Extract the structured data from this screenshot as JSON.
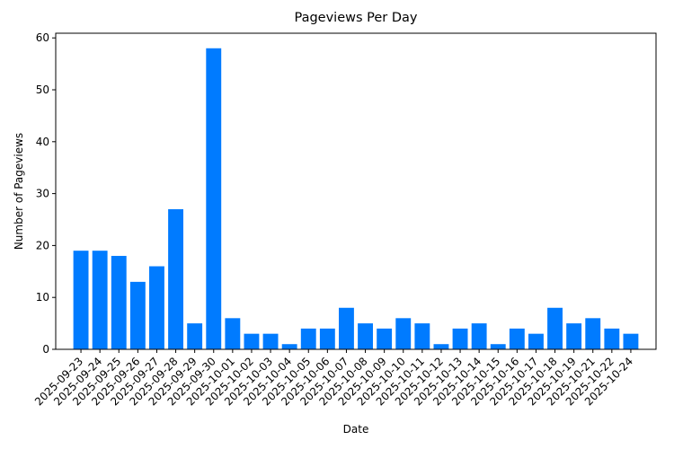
{
  "chart_data": {
    "type": "bar",
    "title": "Pageviews Per Day",
    "x_label": "Date",
    "y_label": "Number of Pageviews",
    "categories": [
      "2025-09-23",
      "2025-09-24",
      "2025-09-25",
      "2025-09-26",
      "2025-09-27",
      "2025-09-28",
      "2025-09-29",
      "2025-09-30",
      "2025-10-01",
      "2025-10-02",
      "2025-10-03",
      "2025-10-04",
      "2025-10-05",
      "2025-10-06",
      "2025-10-07",
      "2025-10-08",
      "2025-10-09",
      "2025-10-10",
      "2025-10-11",
      "2025-10-12",
      "2025-10-13",
      "2025-10-14",
      "2025-10-15",
      "2025-10-16",
      "2025-10-17",
      "2025-10-18",
      "2025-10-19",
      "2025-10-21",
      "2025-10-22",
      "2025-10-24"
    ],
    "values": [
      19,
      19,
      18,
      13,
      16,
      27,
      5,
      58,
      6,
      3,
      3,
      1,
      4,
      4,
      8,
      5,
      4,
      6,
      5,
      1,
      4,
      5,
      1,
      4,
      3,
      8,
      5,
      6,
      4,
      3
    ],
    "color": "#007bff",
    "ylim": [
      0,
      60.9
    ],
    "yticks": [
      0,
      10,
      20,
      30,
      40,
      50,
      60
    ],
    "grid": false
  }
}
